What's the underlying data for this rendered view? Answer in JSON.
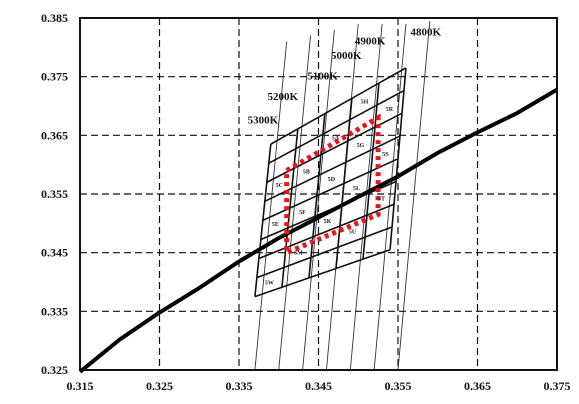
{
  "chart_data": {
    "type": "line",
    "title": "",
    "xlabel": "",
    "ylabel": "",
    "xlim": [
      0.315,
      0.375
    ],
    "ylim": [
      0.325,
      0.385
    ],
    "x_ticks": [
      "0.315",
      "0.325",
      "0.335",
      "0.345",
      "0.355",
      "0.365",
      "0.375"
    ],
    "y_ticks": [
      "0.325",
      "0.335",
      "0.345",
      "0.355",
      "0.365",
      "0.375",
      "0.385"
    ],
    "grid": true,
    "planckian_locus": {
      "x": [
        0.315,
        0.32,
        0.325,
        0.33,
        0.335,
        0.34,
        0.345,
        0.35,
        0.355,
        0.36,
        0.365,
        0.37,
        0.375
      ],
      "y": [
        0.3247,
        0.3302,
        0.3348,
        0.339,
        0.3435,
        0.3475,
        0.351,
        0.3545,
        0.358,
        0.362,
        0.3655,
        0.3688,
        0.3728
      ]
    },
    "isotherms": [
      {
        "label": "4800K",
        "x1": 0.355,
        "y1": 0.325,
        "x2": 0.359,
        "y2": 0.3845,
        "lx": 0.3585,
        "ly": 0.382
      },
      {
        "label": "4900K",
        "x1": 0.352,
        "y1": 0.325,
        "x2": 0.356,
        "y2": 0.384,
        "lx": 0.3515,
        "ly": 0.3805
      },
      {
        "label": "5000K",
        "x1": 0.349,
        "y1": 0.325,
        "x2": 0.353,
        "y2": 0.384,
        "lx": 0.3485,
        "ly": 0.378
      },
      {
        "label": "5100K",
        "x1": 0.346,
        "y1": 0.325,
        "x2": 0.35,
        "y2": 0.384,
        "lx": 0.3455,
        "ly": 0.3745
      },
      {
        "label": "5200K",
        "x1": 0.343,
        "y1": 0.325,
        "x2": 0.347,
        "y2": 0.383,
        "lx": 0.3405,
        "ly": 0.371
      },
      {
        "label": "5300K",
        "x1": 0.34,
        "y1": 0.325,
        "x2": 0.344,
        "y2": 0.382,
        "lx": 0.338,
        "ly": 0.367
      },
      {
        "label": "",
        "x1": 0.337,
        "y1": 0.325,
        "x2": 0.341,
        "y2": 0.381,
        "lx": 0,
        "ly": 0
      }
    ],
    "binning_grid": {
      "corners": {
        "top_left": [
          0.339,
          0.3635
        ],
        "top_right": [
          0.356,
          0.3765
        ],
        "bottom_left": [
          0.337,
          0.3375
        ],
        "bottom_right": [
          0.354,
          0.3455
        ]
      },
      "columns": 5,
      "rows": 8,
      "cell_labels": [
        "5H",
        "5A",
        "5B",
        "5C",
        "5D",
        "5E",
        "5F",
        "5G",
        "5W",
        "5M",
        "5K",
        "5L",
        "5R",
        "5S",
        "5T",
        "5U"
      ]
    },
    "target_region": [
      [
        0.341,
        0.359
      ],
      [
        0.3525,
        0.368
      ],
      [
        0.3525,
        0.3515
      ],
      [
        0.341,
        0.345
      ]
    ]
  }
}
